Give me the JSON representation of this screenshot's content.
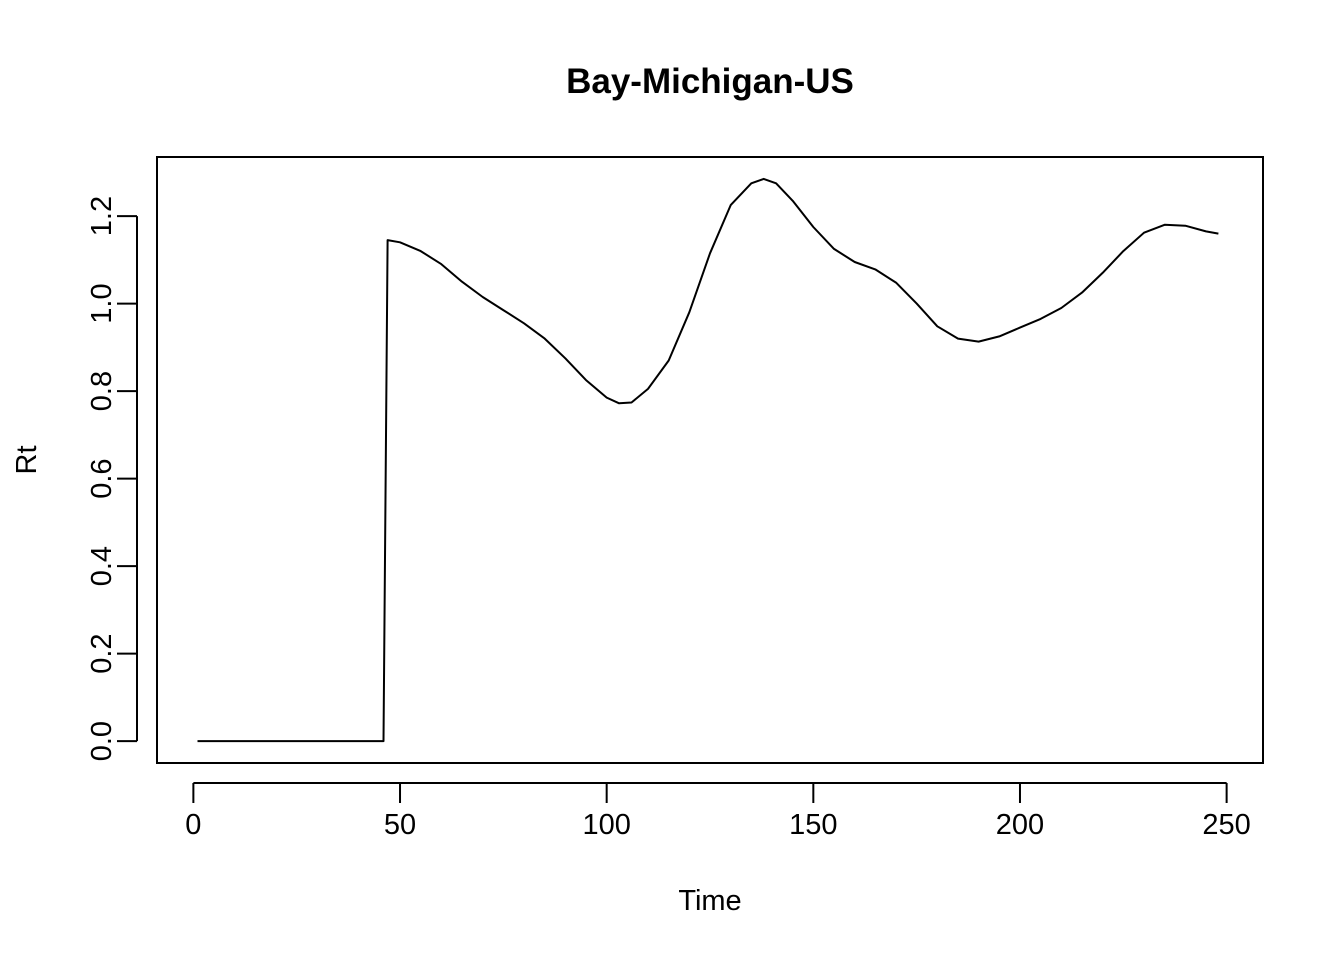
{
  "chart_data": {
    "type": "line",
    "title": "Bay-Michigan-US",
    "xlabel": "Time",
    "ylabel": "Rt",
    "xlim": [
      -8.8,
      258.8
    ],
    "ylim": [
      -0.05,
      1.335
    ],
    "xticks": [
      0,
      50,
      100,
      150,
      200,
      250
    ],
    "xtick_labels": [
      "0",
      "50",
      "100",
      "150",
      "200",
      "250"
    ],
    "yticks": [
      0.0,
      0.2,
      0.4,
      0.6,
      0.8,
      1.0,
      1.2
    ],
    "ytick_labels": [
      "0.0",
      "0.2",
      "0.4",
      "0.6",
      "0.8",
      "1.0",
      "1.2"
    ],
    "grid": false,
    "legend": "none",
    "line_color": "#000000",
    "series": [
      {
        "points": [
          [
            1,
            0.0
          ],
          [
            10,
            0.0
          ],
          [
            20,
            0.0
          ],
          [
            30,
            0.0
          ],
          [
            40,
            0.0
          ],
          [
            46,
            0.0
          ],
          [
            47,
            1.145
          ],
          [
            50,
            1.14
          ],
          [
            55,
            1.12
          ],
          [
            60,
            1.09
          ],
          [
            65,
            1.05
          ],
          [
            70,
            1.015
          ],
          [
            75,
            0.985
          ],
          [
            80,
            0.955
          ],
          [
            85,
            0.92
          ],
          [
            90,
            0.875
          ],
          [
            95,
            0.825
          ],
          [
            100,
            0.785
          ],
          [
            103,
            0.772
          ],
          [
            106,
            0.774
          ],
          [
            110,
            0.805
          ],
          [
            115,
            0.87
          ],
          [
            120,
            0.98
          ],
          [
            125,
            1.115
          ],
          [
            130,
            1.225
          ],
          [
            135,
            1.275
          ],
          [
            138,
            1.285
          ],
          [
            141,
            1.275
          ],
          [
            145,
            1.235
          ],
          [
            150,
            1.175
          ],
          [
            155,
            1.125
          ],
          [
            160,
            1.095
          ],
          [
            165,
            1.078
          ],
          [
            170,
            1.048
          ],
          [
            175,
            1.0
          ],
          [
            180,
            0.948
          ],
          [
            185,
            0.92
          ],
          [
            190,
            0.913
          ],
          [
            195,
            0.925
          ],
          [
            200,
            0.945
          ],
          [
            205,
            0.965
          ],
          [
            210,
            0.99
          ],
          [
            215,
            1.025
          ],
          [
            220,
            1.07
          ],
          [
            225,
            1.12
          ],
          [
            230,
            1.162
          ],
          [
            235,
            1.18
          ],
          [
            240,
            1.178
          ],
          [
            245,
            1.165
          ],
          [
            248,
            1.16
          ]
        ]
      }
    ]
  }
}
